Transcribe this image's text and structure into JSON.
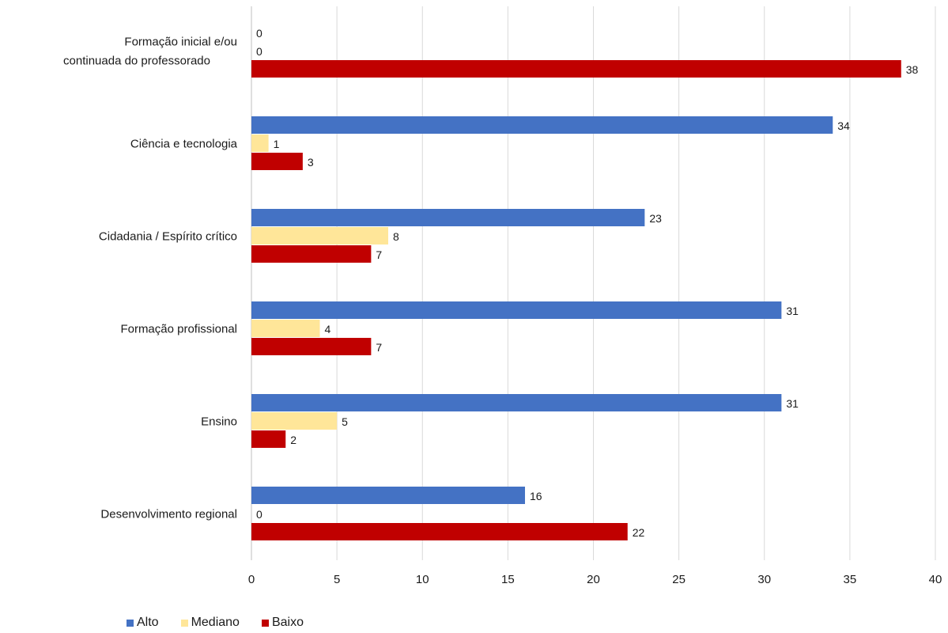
{
  "chart_data": {
    "type": "bar",
    "orientation": "horizontal",
    "categories": [
      "Formação inicial e/ou continuada do professorado",
      "Ciência e tecnologia",
      "Cidadania / Espírito crítico",
      "Formação profissional",
      "Ensino",
      "Desenvolvimento regional"
    ],
    "series": [
      {
        "name": "Alto",
        "color": "#4472C4",
        "values": [
          0,
          34,
          23,
          31,
          31,
          16
        ]
      },
      {
        "name": "Mediano",
        "color": "#FFE699",
        "values": [
          0,
          1,
          8,
          4,
          5,
          0
        ]
      },
      {
        "name": "Baixo",
        "color": "#C00000",
        "values": [
          38,
          3,
          7,
          7,
          2,
          22
        ]
      }
    ],
    "xlim": [
      0,
      40
    ],
    "xticks": [
      0,
      5,
      10,
      15,
      20,
      25,
      30,
      35,
      40
    ],
    "grid": true,
    "legend_position": "bottom-left"
  }
}
